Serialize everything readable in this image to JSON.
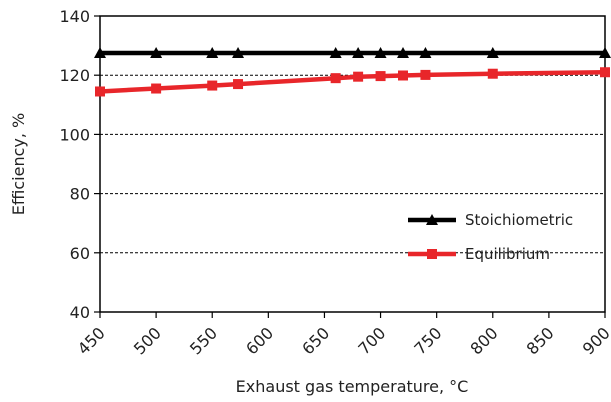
{
  "chart_data": {
    "type": "line",
    "title": "",
    "xlabel": "Exhaust gas temperature, °C",
    "ylabel": "Efficiency, %",
    "xlim": [
      450,
      900
    ],
    "ylim": [
      40,
      140
    ],
    "x_ticks": [
      450,
      500,
      550,
      600,
      650,
      700,
      750,
      800,
      850,
      900
    ],
    "y_ticks": [
      40,
      60,
      80,
      100,
      120,
      140
    ],
    "grid": "horizontal dashed",
    "legend_position": "right",
    "series": [
      {
        "name": "Stoichiometric",
        "color": "#000000",
        "marker": "triangle",
        "points": [
          [
            450,
            127.5
          ],
          [
            500,
            127.5
          ],
          [
            550,
            127.5
          ],
          [
            573,
            127.5
          ],
          [
            660,
            127.5
          ],
          [
            680,
            127.5
          ],
          [
            700,
            127.5
          ],
          [
            720,
            127.5
          ],
          [
            740,
            127.5
          ],
          [
            800,
            127.5
          ],
          [
            900,
            127.5
          ]
        ]
      },
      {
        "name": "Equilibrium",
        "color": "#e8262a",
        "marker": "square",
        "points": [
          [
            450,
            114.5
          ],
          [
            500,
            115.5
          ],
          [
            550,
            116.5
          ],
          [
            573,
            117.0
          ],
          [
            660,
            119.0
          ],
          [
            680,
            119.5
          ],
          [
            700,
            119.7
          ],
          [
            720,
            119.9
          ],
          [
            740,
            120.1
          ],
          [
            800,
            120.5
          ],
          [
            900,
            121.0
          ]
        ]
      }
    ]
  }
}
